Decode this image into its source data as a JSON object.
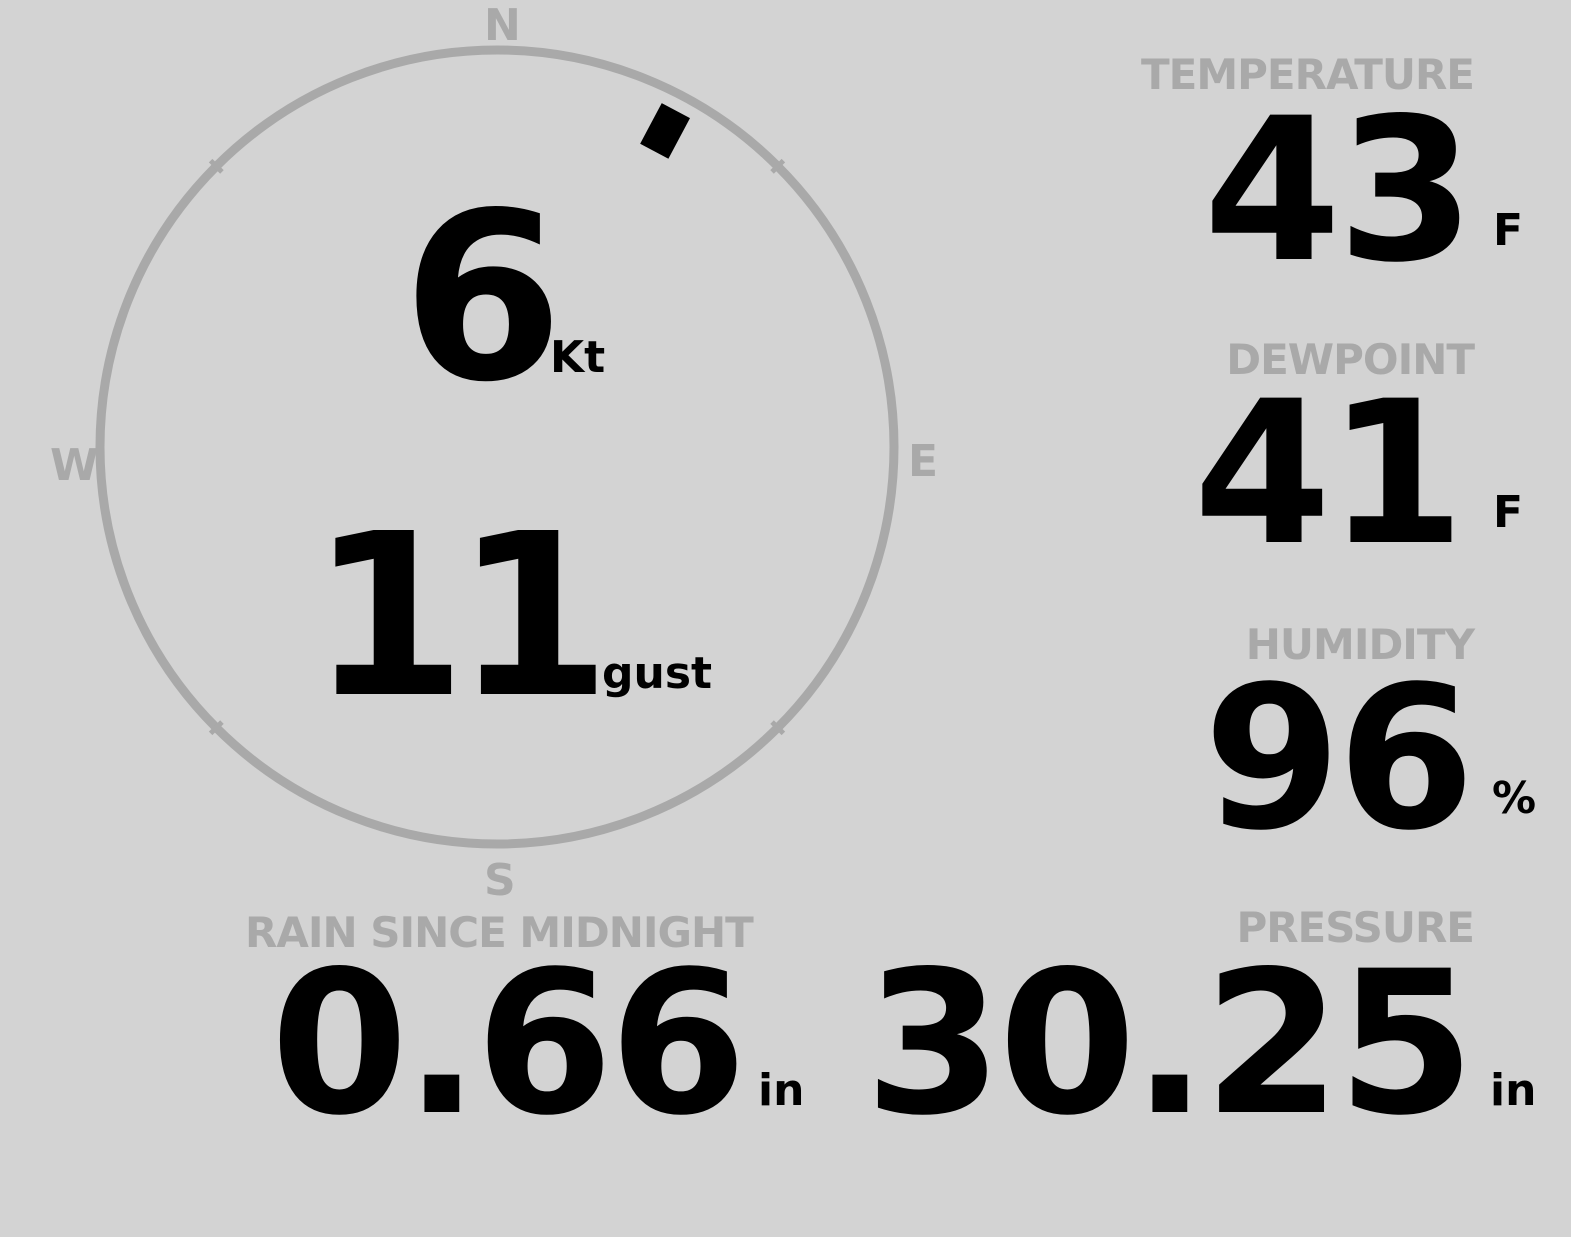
{
  "compass": {
    "north": "N",
    "east": "E",
    "south": "S",
    "west": "W",
    "wind_direction_deg": 28,
    "ring_color": "#a9a9a9",
    "marker_color": "#000000"
  },
  "wind": {
    "speed": "6",
    "speed_unit": "Kt",
    "gust": "11",
    "gust_unit": "gust"
  },
  "temperature": {
    "label": "TEMPERATURE",
    "value": "43",
    "unit": "F"
  },
  "dewpoint": {
    "label": "DEWPOINT",
    "value": "41",
    "unit": "F"
  },
  "humidity": {
    "label": "HUMIDITY",
    "value": "96",
    "unit": "%"
  },
  "rain": {
    "label": "RAIN SINCE MIDNIGHT",
    "value": "0.66",
    "unit": "in"
  },
  "pressure": {
    "label": "PRESSURE",
    "value": "30.25",
    "unit": "in"
  }
}
